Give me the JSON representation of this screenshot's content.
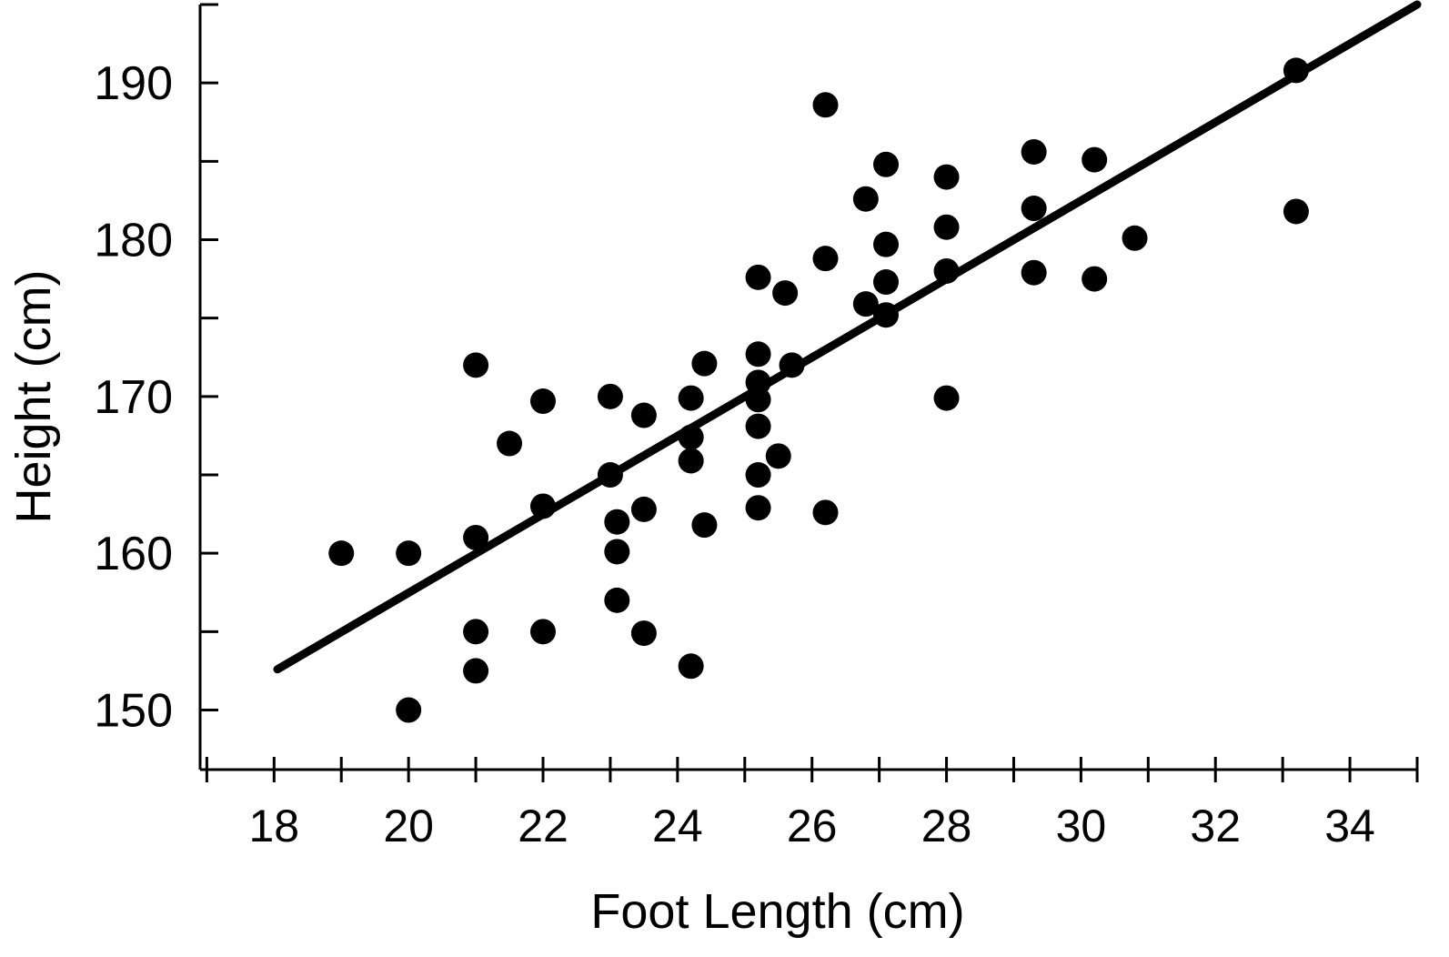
{
  "chart_data": {
    "type": "scatter",
    "title": "",
    "xlabel": "Foot Length (cm)",
    "ylabel": "Height (cm)",
    "xlim": [
      16.9,
      35
    ],
    "ylim": [
      146.2,
      195
    ],
    "x_ticks": [
      18,
      20,
      22,
      24,
      26,
      28,
      30,
      32,
      34
    ],
    "x_minor_step": 1,
    "y_ticks": [
      150,
      160,
      170,
      180,
      190
    ],
    "y_minor_step": 5,
    "grid": false,
    "legend": "none",
    "color": "#000000",
    "trend_line": {
      "x": [
        18.05,
        35
      ],
      "y": [
        152.6,
        195
      ]
    },
    "points": [
      [
        19,
        160
      ],
      [
        20,
        160
      ],
      [
        20,
        150
      ],
      [
        21,
        172
      ],
      [
        21,
        161
      ],
      [
        21,
        155
      ],
      [
        21,
        152.5
      ],
      [
        21.5,
        167
      ],
      [
        22,
        169.7
      ],
      [
        22,
        163
      ],
      [
        22,
        155
      ],
      [
        23,
        170
      ],
      [
        23,
        165
      ],
      [
        23.1,
        162
      ],
      [
        23.1,
        160.1
      ],
      [
        23.1,
        157
      ],
      [
        23.5,
        168.8
      ],
      [
        23.5,
        162.8
      ],
      [
        23.5,
        154.9
      ],
      [
        24.2,
        169.9
      ],
      [
        24.2,
        167.4
      ],
      [
        24.2,
        165.9
      ],
      [
        24.2,
        152.8
      ],
      [
        24.4,
        172.1
      ],
      [
        24.4,
        161.8
      ],
      [
        25.2,
        172.7
      ],
      [
        25.2,
        170.9
      ],
      [
        25.2,
        169.8
      ],
      [
        25.2,
        168.1
      ],
      [
        25.2,
        165
      ],
      [
        25.2,
        162.9
      ],
      [
        25.2,
        177.6
      ],
      [
        25.5,
        166.2
      ],
      [
        25.6,
        176.6
      ],
      [
        25.7,
        172
      ],
      [
        26.2,
        188.6
      ],
      [
        26.2,
        178.8
      ],
      [
        26.2,
        162.6
      ],
      [
        26.8,
        182.6
      ],
      [
        26.8,
        175.9
      ],
      [
        27.1,
        184.8
      ],
      [
        27.1,
        179.7
      ],
      [
        27.1,
        177.3
      ],
      [
        27.1,
        175.2
      ],
      [
        28,
        184
      ],
      [
        28,
        180.8
      ],
      [
        28,
        178
      ],
      [
        28,
        169.9
      ],
      [
        29.3,
        185.6
      ],
      [
        29.3,
        182
      ],
      [
        29.3,
        177.9
      ],
      [
        30.2,
        185.1
      ],
      [
        30.2,
        177.5
      ],
      [
        30.8,
        180.1
      ],
      [
        33.2,
        190.8
      ],
      [
        33.2,
        181.8
      ]
    ]
  }
}
